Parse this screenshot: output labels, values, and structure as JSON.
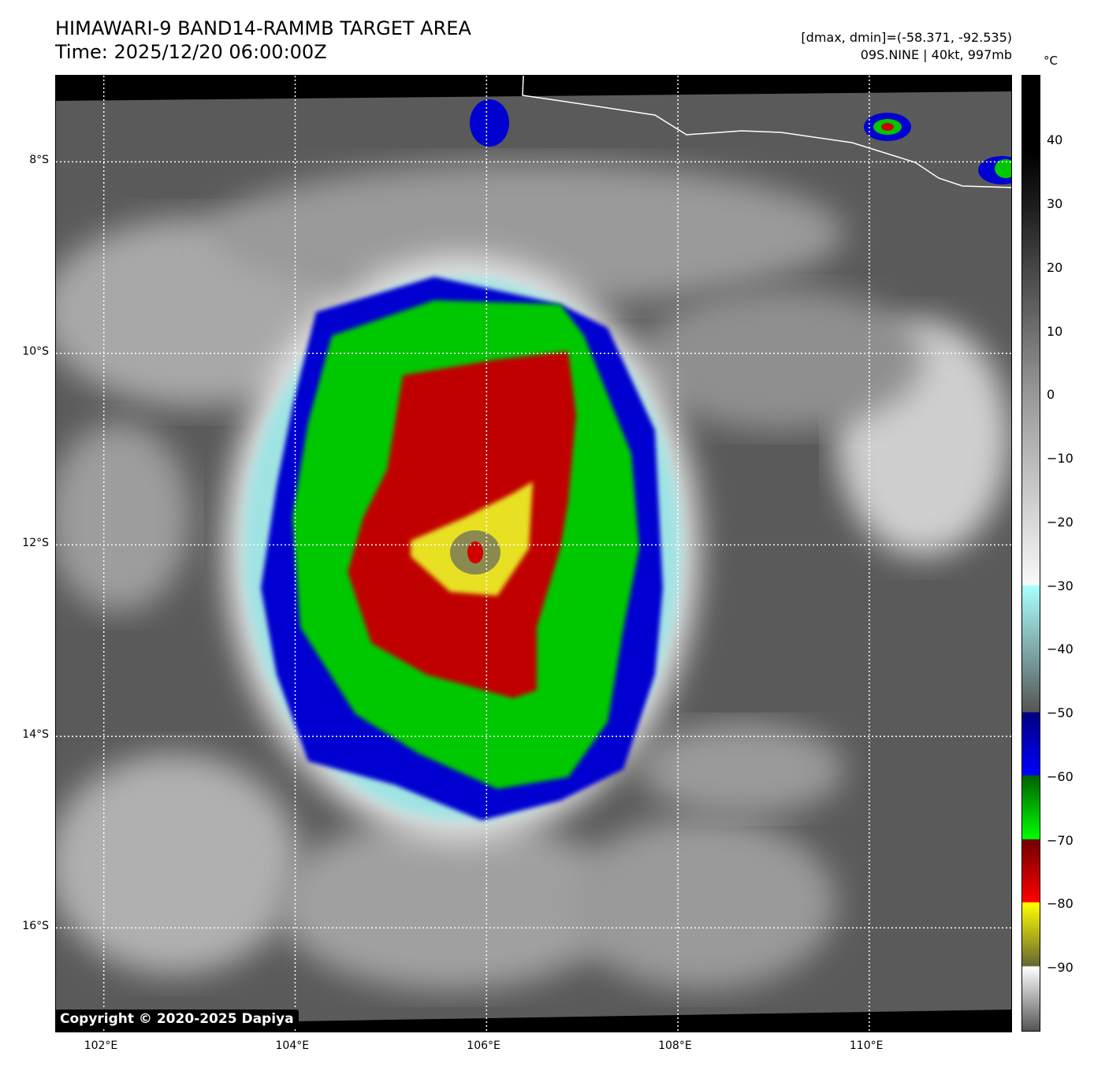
{
  "header": {
    "title": "HIMAWARI-9 BAND14-RAMMB TARGET AREA",
    "time": "Time: 2025/12/20 06:00:00Z",
    "range": "[dmax, dmin]=(-58.371, -92.535)",
    "storm": "09S.NINE | 40kt, 997mb"
  },
  "map": {
    "lon_range": [
      101.5,
      111.5
    ],
    "lat_range": [
      -7.1,
      -17.1
    ],
    "lon_ticks": [
      {
        "v": 102,
        "label": "102°E"
      },
      {
        "v": 104,
        "label": "104°E"
      },
      {
        "v": 106,
        "label": "106°E"
      },
      {
        "v": 108,
        "label": "108°E"
      },
      {
        "v": 110,
        "label": "110°E"
      }
    ],
    "lat_ticks": [
      {
        "v": -8,
        "label": "8°S"
      },
      {
        "v": -10,
        "label": "10°S"
      },
      {
        "v": -12,
        "label": "12°S"
      },
      {
        "v": -14,
        "label": "14°S"
      },
      {
        "v": -16,
        "label": "16°S"
      }
    ]
  },
  "colorbar": {
    "unit": "°C",
    "range": [
      50.3,
      -100
    ],
    "ticks": [
      "40",
      "30",
      "20",
      "10",
      "0",
      "−10",
      "−20",
      "−30",
      "−40",
      "−50",
      "−60",
      "−70",
      "−80",
      "−90"
    ],
    "tick_values": [
      40,
      30,
      20,
      10,
      0,
      -10,
      -20,
      -30,
      -40,
      -50,
      -60,
      -70,
      -80,
      -90
    ]
  },
  "copyright": "Copyright © 2020-2025 Dapiya"
}
